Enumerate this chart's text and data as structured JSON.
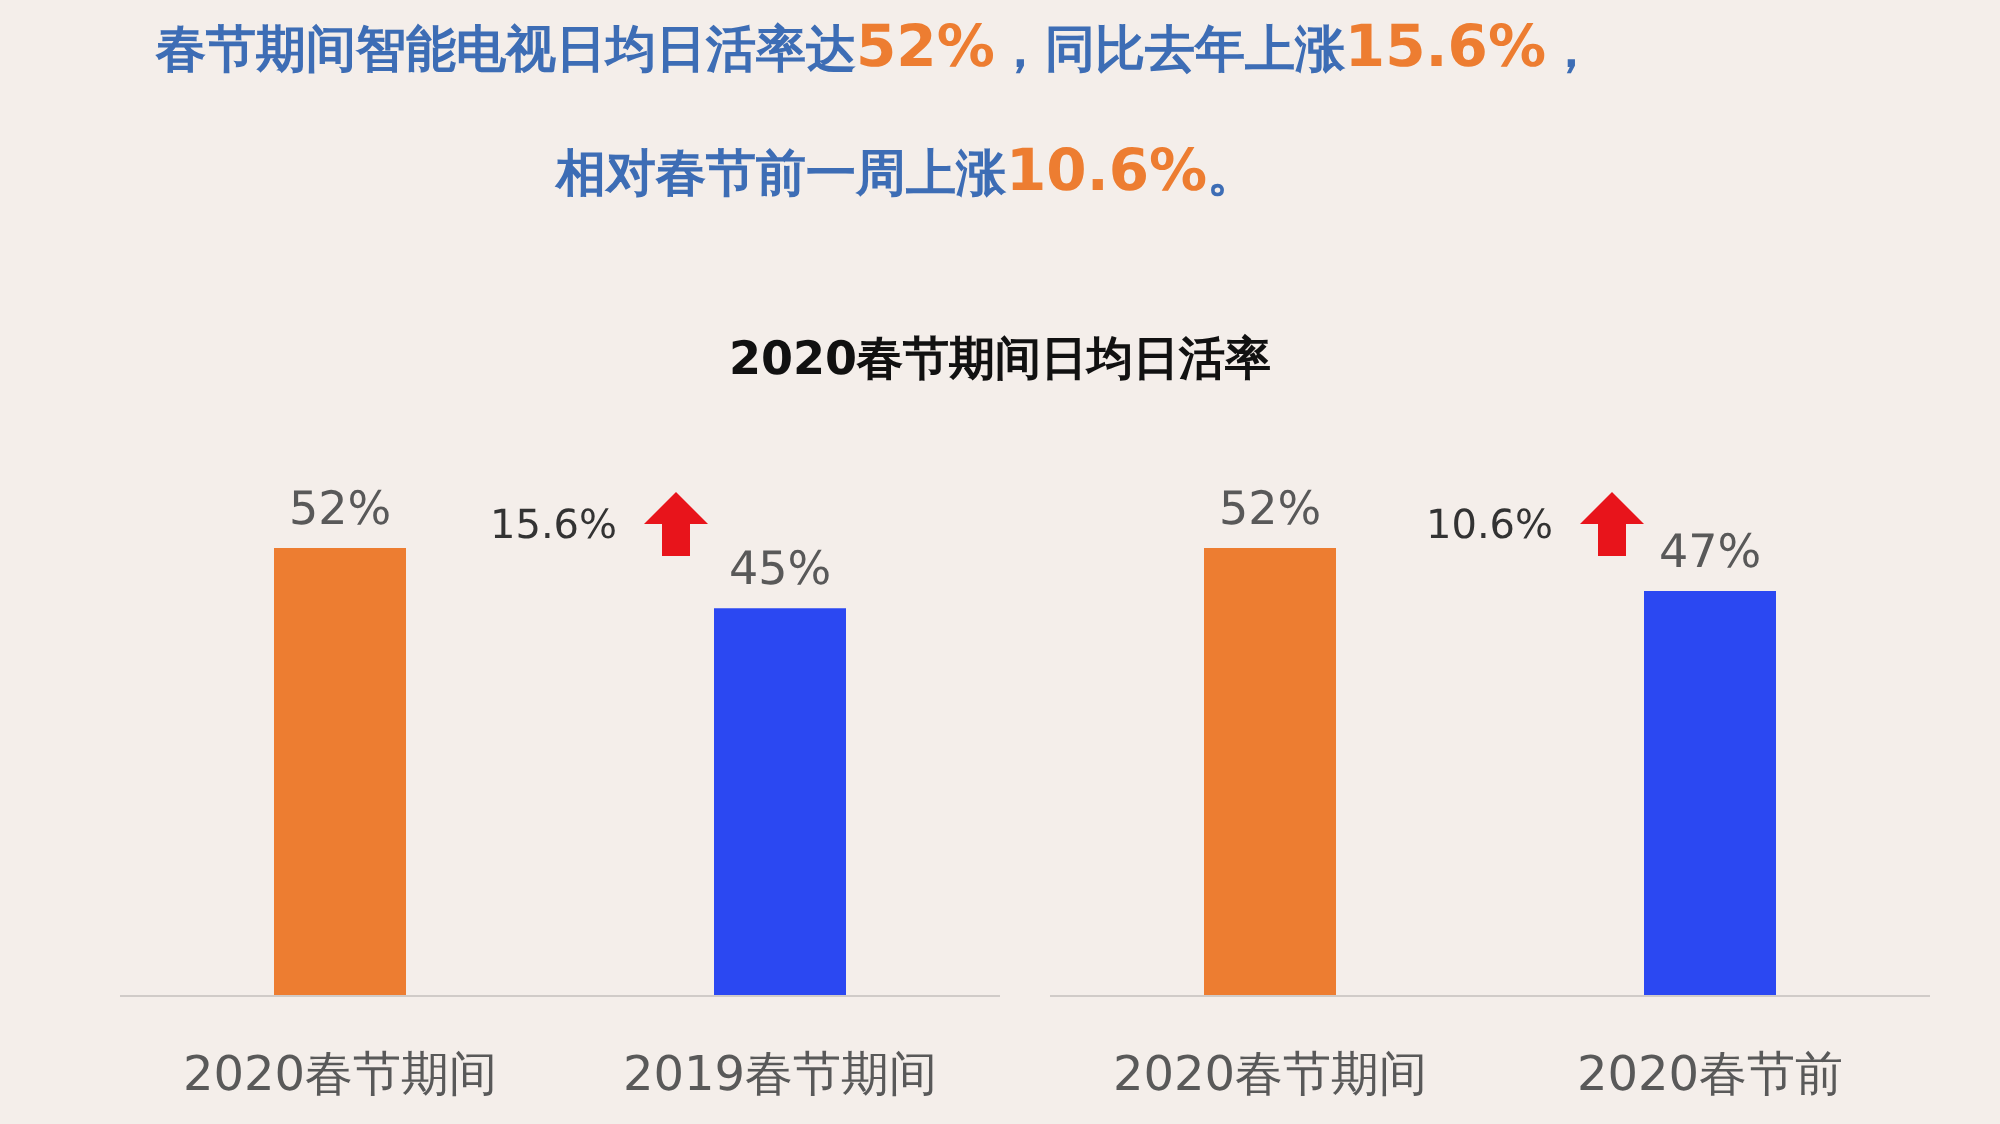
{
  "chart_data": [
    {
      "type": "bar",
      "title": "2020春节期间日均日活率",
      "annotations": [
        "春节期间智能电视日均日活率达52%，同比去年上涨15.6%，",
        "相对春节前一周上涨10.6%。",
        "15.6%"
      ],
      "categories": [
        "2020春节期间",
        "2019春节期间"
      ],
      "values": [
        52,
        45
      ],
      "value_labels": [
        "52%",
        "45%"
      ],
      "colors": [
        "#ed7d31",
        "#2b48f2"
      ],
      "grid": false,
      "legend": false
    },
    {
      "type": "bar",
      "annotations": [
        "10.6%"
      ],
      "categories": [
        "2020春节期间",
        "2020春节前"
      ],
      "values": [
        52,
        47
      ],
      "value_labels": [
        "52%",
        "47%"
      ],
      "colors": [
        "#ed7d31",
        "#2b48f2"
      ],
      "grid": false,
      "legend": false
    }
  ]
}
